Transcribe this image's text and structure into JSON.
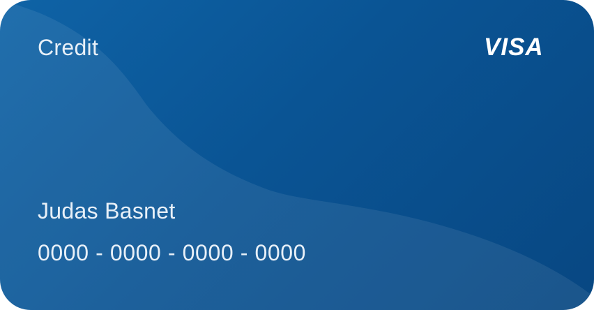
{
  "card": {
    "type_label": "Credit",
    "brand": "VISA",
    "holder_name": "Judas Basnet",
    "number": "0000 - 0000 - 0000 - 0000"
  },
  "colors": {
    "card_start": "#0f63a6",
    "card_end": "#084782",
    "text": "#e8f0f8",
    "brand_text": "#ffffff"
  }
}
